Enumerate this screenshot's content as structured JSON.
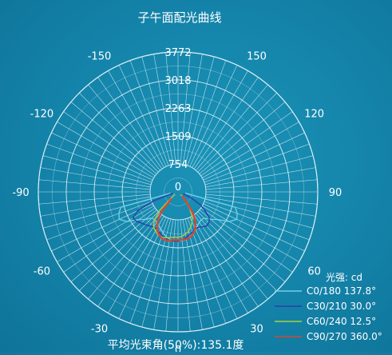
{
  "chart_data": {
    "type": "polar-line",
    "title": "子午面配光曲线",
    "unit_label": "光强: cd",
    "footer": "平均光束角(50%):135.1度",
    "radial_max": 3772,
    "ring_values": [
      754,
      1509,
      2263,
      3018,
      3772
    ],
    "angle_ticks": [
      {
        "angle": 0,
        "label": "0"
      },
      {
        "angle": 30,
        "label": "30"
      },
      {
        "angle": 60,
        "label": "60"
      },
      {
        "angle": 90,
        "label": "90"
      },
      {
        "angle": 120,
        "label": "120"
      },
      {
        "angle": 150,
        "label": "150"
      },
      {
        "angle": -30,
        "label": "-30"
      },
      {
        "angle": -60,
        "label": "-60"
      },
      {
        "angle": -90,
        "label": "-90"
      },
      {
        "angle": -120,
        "label": "-120"
      },
      {
        "angle": -150,
        "label": "-150"
      }
    ],
    "series": [
      {
        "name": "C0/180 137.8°",
        "color": "#6fd0e6",
        "points": [
          [
            -80,
            200
          ],
          [
            -75,
            1600
          ],
          [
            -70,
            1700
          ],
          [
            -65,
            1750
          ],
          [
            -60,
            1600
          ],
          [
            -55,
            1300
          ],
          [
            -50,
            1150
          ],
          [
            -45,
            1000
          ],
          [
            -40,
            980
          ],
          [
            -35,
            1000
          ],
          [
            -30,
            1050
          ],
          [
            -25,
            1100
          ],
          [
            -20,
            1180
          ],
          [
            -15,
            1250
          ],
          [
            -10,
            1300
          ],
          [
            -5,
            1320
          ],
          [
            0,
            1330
          ],
          [
            5,
            1320
          ],
          [
            10,
            1300
          ],
          [
            15,
            1250
          ],
          [
            20,
            1180
          ],
          [
            25,
            1100
          ],
          [
            30,
            1050
          ],
          [
            35,
            1000
          ],
          [
            40,
            980
          ],
          [
            45,
            1000
          ],
          [
            50,
            1150
          ],
          [
            55,
            1300
          ],
          [
            60,
            1600
          ],
          [
            65,
            1750
          ],
          [
            70,
            1700
          ],
          [
            75,
            1600
          ],
          [
            80,
            200
          ]
        ]
      },
      {
        "name": "C30/210 30.0°",
        "color": "#2a3fa8",
        "points": [
          [
            -75,
            150
          ],
          [
            -70,
            700
          ],
          [
            -65,
            1200
          ],
          [
            -60,
            1400
          ],
          [
            -55,
            1380
          ],
          [
            -50,
            1300
          ],
          [
            -45,
            1250
          ],
          [
            -40,
            1200
          ],
          [
            -35,
            1150
          ],
          [
            -30,
            1150
          ],
          [
            -25,
            1200
          ],
          [
            -20,
            1250
          ],
          [
            -15,
            1300
          ],
          [
            -10,
            1320
          ],
          [
            -5,
            1330
          ],
          [
            0,
            1330
          ],
          [
            5,
            1300
          ],
          [
            10,
            1250
          ],
          [
            15,
            1200
          ],
          [
            20,
            1150
          ],
          [
            25,
            1100
          ],
          [
            30,
            1100
          ],
          [
            35,
            1150
          ],
          [
            40,
            1200
          ],
          [
            45,
            1180
          ],
          [
            50,
            1100
          ],
          [
            55,
            900
          ],
          [
            60,
            700
          ],
          [
            65,
            400
          ],
          [
            70,
            150
          ]
        ]
      },
      {
        "name": "C60/240 12.5°",
        "color": "#a9cf3b",
        "points": [
          [
            -55,
            100
          ],
          [
            -45,
            700
          ],
          [
            -40,
            1000
          ],
          [
            -35,
            1150
          ],
          [
            -30,
            1220
          ],
          [
            -25,
            1280
          ],
          [
            -20,
            1300
          ],
          [
            -15,
            1280
          ],
          [
            -10,
            1250
          ],
          [
            -5,
            1220
          ],
          [
            0,
            1230
          ],
          [
            5,
            1200
          ],
          [
            10,
            1150
          ],
          [
            15,
            1100
          ],
          [
            20,
            1000
          ],
          [
            25,
            900
          ],
          [
            30,
            750
          ],
          [
            35,
            550
          ],
          [
            40,
            300
          ],
          [
            45,
            100
          ]
        ]
      },
      {
        "name": "C90/270 360.0°",
        "color": "#e0442f",
        "points": [
          [
            -45,
            250
          ],
          [
            -40,
            700
          ],
          [
            -35,
            950
          ],
          [
            -30,
            1120
          ],
          [
            -25,
            1250
          ],
          [
            -20,
            1320
          ],
          [
            -15,
            1350
          ],
          [
            -10,
            1330
          ],
          [
            -5,
            1300
          ],
          [
            0,
            1300
          ],
          [
            5,
            1300
          ],
          [
            10,
            1290
          ],
          [
            15,
            1270
          ],
          [
            20,
            1200
          ],
          [
            25,
            1100
          ],
          [
            30,
            950
          ],
          [
            35,
            700
          ],
          [
            40,
            350
          ],
          [
            45,
            150
          ]
        ]
      }
    ]
  }
}
